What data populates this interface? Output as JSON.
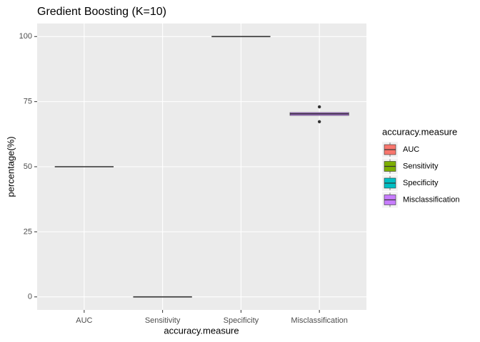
{
  "chart_data": {
    "type": "box",
    "title": "Gredient Boosting (K=10)",
    "xlabel": "accuracy.measure",
    "ylabel": "percentage(%)",
    "legend_title": "accuracy.measure",
    "categories": [
      "AUC",
      "Sensitivity",
      "Specificity",
      "Misclassification"
    ],
    "series": [
      {
        "name": "AUC",
        "color": "#F8766D",
        "min": 50,
        "q1": 50,
        "median": 50,
        "q3": 50,
        "max": 50,
        "outliers": []
      },
      {
        "name": "Sensitivity",
        "color": "#7CAE00",
        "min": 0,
        "q1": 0,
        "median": 0,
        "q3": 0,
        "max": 0,
        "outliers": []
      },
      {
        "name": "Specificity",
        "color": "#00BFC4",
        "min": 100,
        "q1": 100,
        "median": 100,
        "q3": 100,
        "max": 100,
        "outliers": []
      },
      {
        "name": "Misclassification",
        "color": "#C77CFF",
        "min": 69.7,
        "q1": 69.7,
        "median": 70.3,
        "q3": 70.8,
        "max": 70.8,
        "outliers": [
          73,
          67.3
        ]
      }
    ],
    "ylim": [
      -5,
      105
    ],
    "yticks": [
      0,
      25,
      50,
      75,
      100
    ],
    "grid": true
  }
}
